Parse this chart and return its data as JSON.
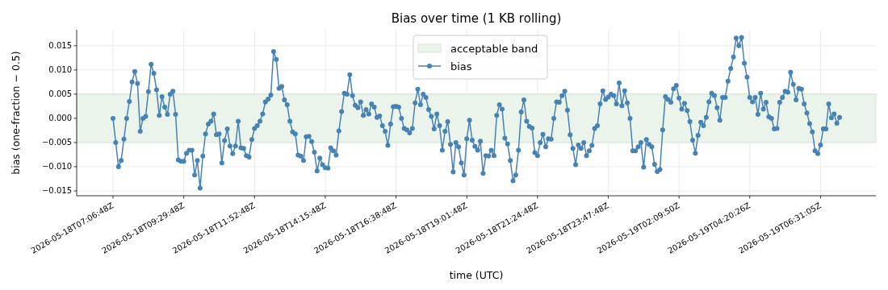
{
  "chart_data": {
    "type": "line",
    "title": "Bias over time (1 KB rolling)",
    "xlabel": "time (UTC)",
    "ylabel": "bias (one-fraction − 0.5)",
    "categories": [
      "2026-05-18T07:06:48Z",
      null,
      null,
      null,
      null,
      null,
      null,
      null,
      null,
      null,
      null,
      null,
      null,
      null,
      null,
      null,
      null,
      null,
      null,
      null,
      null,
      null,
      null,
      null,
      null,
      null,
      "2026-05-18T09:29:48Z",
      null,
      null,
      null,
      null,
      null,
      null,
      null,
      null,
      null,
      null,
      null,
      null,
      null,
      null,
      null,
      null,
      null,
      null,
      null,
      null,
      null,
      null,
      null,
      null,
      null,
      "2026-05-18T11:52:48Z",
      null,
      null,
      null,
      null,
      null,
      null,
      null,
      null,
      null,
      null,
      null,
      null,
      null,
      null,
      null,
      null,
      null,
      null,
      null,
      null,
      null,
      null,
      null,
      null,
      null,
      "2026-05-18T14:15:48Z",
      null,
      null,
      null,
      null,
      null,
      null,
      null,
      null,
      null,
      null,
      null,
      null,
      null,
      null,
      null,
      null,
      null,
      null,
      null,
      null,
      null,
      null,
      null,
      null,
      null,
      "2026-05-18T16:38:48Z",
      null,
      null,
      null,
      null,
      null,
      null,
      null,
      null,
      null,
      null,
      null,
      null,
      null,
      null,
      null,
      null,
      null,
      null,
      null,
      null,
      null,
      null,
      null,
      null,
      null,
      "2026-05-18T19:01:48Z",
      null,
      null,
      null,
      null,
      null,
      null,
      null,
      null,
      null,
      null,
      null,
      null,
      null,
      null,
      null,
      null,
      null,
      null,
      null,
      null,
      null,
      null,
      null,
      null,
      null,
      "2026-05-18T21:24:48Z",
      null,
      null,
      null,
      null,
      null,
      null,
      null,
      null,
      null,
      null,
      null,
      null,
      null,
      null,
      null,
      null,
      null,
      null,
      null,
      null,
      null,
      null,
      null,
      null,
      null,
      "2026-05-18T23:47:48Z",
      null,
      null,
      null,
      null,
      null,
      null,
      null,
      null,
      null,
      null,
      null,
      null,
      null,
      null,
      null,
      null,
      null,
      null,
      null,
      null,
      null,
      null,
      null,
      null,
      null,
      "2026-05-19T02:09:50Z",
      null,
      null,
      null,
      null,
      null,
      null,
      null,
      null,
      null,
      null,
      null,
      null,
      null,
      null,
      null,
      null,
      null,
      null,
      null,
      null,
      null,
      null,
      null,
      null,
      null,
      "2026-05-19T04:20:26Z",
      null,
      null,
      null,
      null,
      null,
      null,
      null,
      null,
      null,
      null,
      null,
      null,
      null,
      null,
      null,
      null,
      null,
      null,
      null,
      null,
      null,
      null,
      null,
      null,
      null,
      "2026-05-19T06:31:05Z",
      null,
      null,
      null,
      null,
      null,
      null,
      null
    ],
    "series": [
      {
        "name": "bias",
        "color": "#4682b4",
        "values": [
          0,
          -0.005,
          -0.01,
          -0.0087,
          -0.0043,
          0,
          0.0035,
          0.0075,
          0.0097,
          0.0072,
          -0.0027,
          0,
          0.0004,
          0.0055,
          0.0112,
          0.0093,
          0.0059,
          0.0006,
          0.0045,
          0.0023,
          0.0008,
          0.005,
          0.0056,
          0.0008,
          -0.0086,
          -0.0089,
          -0.0089,
          -0.0072,
          -0.0066,
          -0.0066,
          -0.0117,
          -0.0087,
          -0.0144,
          -0.0078,
          -0.0032,
          -0.0012,
          -0.0006,
          0.0009,
          -0.0034,
          -0.0032,
          -0.0092,
          -0.0046,
          -0.0022,
          -0.0057,
          -0.0073,
          -0.0057,
          -0.0006,
          -0.0061,
          -0.0062,
          -0.0077,
          -0.008,
          -0.0044,
          -0.0021,
          -0.0015,
          -0.0006,
          0.0009,
          0.0034,
          0.004,
          0.0048,
          0.0138,
          0.0122,
          0.0062,
          0.0066,
          0.0038,
          0.0028,
          -0.0006,
          -0.0028,
          -0.0032,
          -0.0076,
          -0.0078,
          -0.0087,
          -0.0038,
          -0.0037,
          -0.0048,
          -0.007,
          -0.0109,
          -0.0082,
          -0.0096,
          -0.0102,
          -0.0103,
          -0.0061,
          -0.0067,
          -0.0076,
          -0.0026,
          0.0014,
          0.0052,
          0.005,
          0.009,
          0.0047,
          0.0027,
          0.0022,
          0.0034,
          0.0006,
          0.0018,
          0.0009,
          0.003,
          0.0023,
          0.0002,
          0.0005,
          -0.0015,
          -0.0027,
          -0.0056,
          -0.0012,
          0.0024,
          0.0025,
          0.0023,
          0,
          -0.0021,
          -0.0024,
          -0.003,
          -0.0021,
          0.0032,
          0.006,
          0.0028,
          0.005,
          0.0043,
          0.0018,
          0.0004,
          -0.0022,
          0.0009,
          -0.0015,
          -0.0066,
          -0.0027,
          -0.0007,
          -0.0054,
          -0.0111,
          -0.005,
          -0.0059,
          -0.0092,
          -0.0117,
          -0.0042,
          -0.0004,
          -0.0045,
          -0.0058,
          -0.0066,
          -0.0047,
          -0.0114,
          -0.0077,
          -0.0078,
          -0.0066,
          -0.0077,
          0.0006,
          0.0028,
          0.0019,
          -0.0041,
          -0.0053,
          -0.0087,
          -0.0129,
          -0.0117,
          -0.0066,
          0.0013,
          0.0038,
          -0.0006,
          -0.0017,
          -0.002,
          -0.0071,
          -0.0077,
          -0.005,
          -0.0033,
          -0.0059,
          -0.0042,
          -0.0043,
          0,
          0.0034,
          0.0033,
          0.0047,
          0.0056,
          0.0017,
          -0.0034,
          -0.0062,
          -0.0096,
          -0.0055,
          -0.0062,
          -0.005,
          -0.0077,
          -0.0067,
          -0.0056,
          -0.0021,
          -0.0015,
          0.003,
          0.0057,
          0.0039,
          0.0044,
          0.005,
          0.0047,
          0.003,
          0.0073,
          0.0026,
          0.0057,
          0.0032,
          0,
          -0.0067,
          -0.0067,
          -0.0059,
          -0.005,
          -0.0101,
          -0.0044,
          -0.0054,
          -0.0059,
          -0.0095,
          -0.011,
          -0.0106,
          -0.0024,
          0.0045,
          0.0039,
          0.0033,
          0.0061,
          0.0068,
          0.0042,
          0.0019,
          0.0031,
          0.0016,
          -0.0007,
          -0.0045,
          -0.0072,
          -0.0035,
          -0.0008,
          -0.0015,
          0.0002,
          0.0034,
          0.0052,
          0.0047,
          0.0022,
          -0.0004,
          0.0043,
          0.0043,
          0.0077,
          0.0103,
          0.0127,
          0.0166,
          0.015,
          0.0167,
          0.0114,
          0.0085,
          0.0043,
          0.0034,
          0.0043,
          0.0008,
          0.0052,
          0.0019,
          0.0033,
          0.0003,
          0,
          -0.0022,
          -0.0021,
          0.0033,
          0.0043,
          0.0056,
          0.0054,
          0.0095,
          0.007,
          0.0038,
          0.0062,
          0.006,
          0.003,
          0.0011,
          -0.0011,
          -0.0028,
          -0.0067,
          -0.0073,
          -0.0055,
          -0.0022,
          -0.0022,
          0.003,
          0.0001,
          0.0009,
          -0.001,
          0.0002
        ]
      }
    ],
    "ylim": [
      -0.016,
      0.0183
    ],
    "yticks": [
      {
        "value": -0.015,
        "label": "−0.015"
      },
      {
        "value": -0.01,
        "label": "−0.010"
      },
      {
        "value": -0.005,
        "label": "−0.005"
      },
      {
        "value": 0,
        "label": "0.000"
      },
      {
        "value": 0.005,
        "label": "0.005"
      },
      {
        "value": 0.01,
        "label": "0.010"
      },
      {
        "value": 0.015,
        "label": "0.015"
      }
    ],
    "bands": [
      {
        "axis": "y",
        "from": -0.005,
        "to": 0.005,
        "label": "acceptable band",
        "color": "#eaf4ea"
      }
    ],
    "grid": true,
    "legend": "top",
    "marker": "circle",
    "line_style": "solid"
  }
}
